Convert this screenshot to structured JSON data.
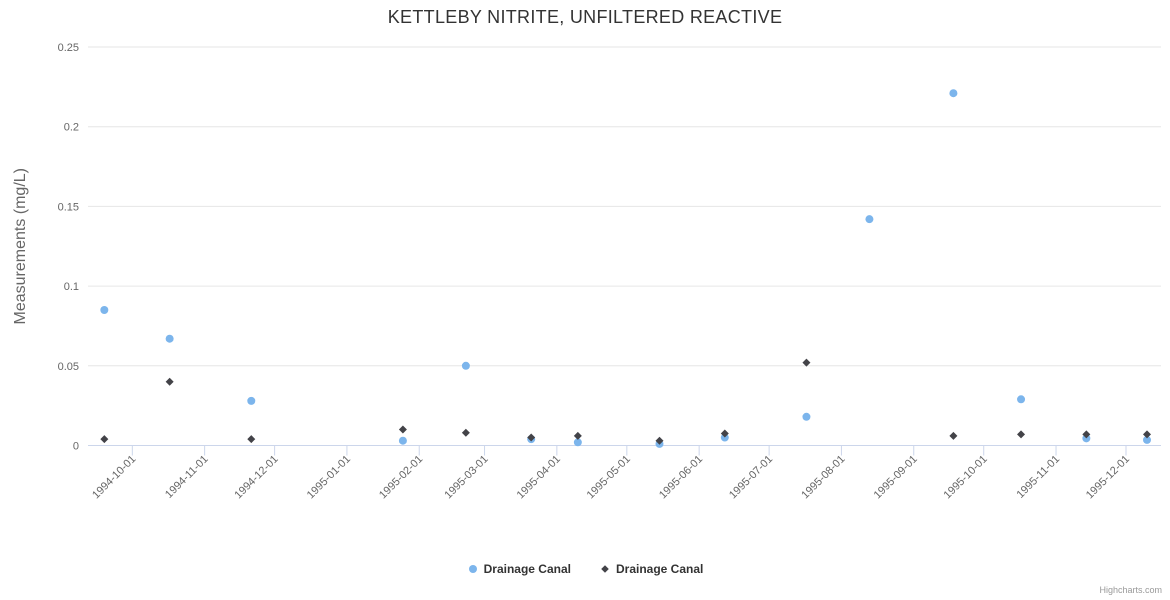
{
  "title": "KETTLEBY NITRITE, UNFILTERED REACTIVE",
  "credits": "Highcharts.com",
  "palette": {
    "series_blue": "#7cb5ec",
    "series_dark": "#434348",
    "gridline": "#e6e6e6",
    "axis_line": "#ccd6eb",
    "tick_label": "#666666",
    "axis_title": "#666666",
    "chart_title": "#333333",
    "legend_text": "#333333",
    "credits_text": "#999999"
  },
  "chart_data": {
    "type": "scatter",
    "title": "KETTLEBY NITRITE, UNFILTERED REACTIVE",
    "xlabel": "",
    "ylabel": "Measurements (mg/L)",
    "ylim": [
      0,
      0.25
    ],
    "y_ticks": [
      0,
      0.05,
      0.1,
      0.15,
      0.2,
      0.25
    ],
    "x_ticks": [
      "1994-10-01",
      "1994-11-01",
      "1994-12-01",
      "1995-01-01",
      "1995-02-01",
      "1995-03-01",
      "1995-04-01",
      "1995-05-01",
      "1995-06-01",
      "1995-07-01",
      "1995-08-01",
      "1995-09-01",
      "1995-10-01",
      "1995-11-01",
      "1995-12-01"
    ],
    "x_range": [
      "1994-09-12",
      "1995-12-16"
    ],
    "x_label_rotation": -45,
    "grid": "horizontal",
    "legend_position": "bottom-center",
    "series": [
      {
        "name": "Drainage Canal",
        "marker": "circle",
        "color": "#7cb5ec",
        "points": [
          [
            "1994-09-19",
            0.085
          ],
          [
            "1994-10-17",
            0.067
          ],
          [
            "1994-11-21",
            0.028
          ],
          [
            "1995-01-25",
            0.003
          ],
          [
            "1995-02-21",
            0.05
          ],
          [
            "1995-03-21",
            0.004
          ],
          [
            "1995-04-10",
            0.002
          ],
          [
            "1995-05-15",
            0.001
          ],
          [
            "1995-06-12",
            0.005
          ],
          [
            "1995-07-17",
            0.018
          ],
          [
            "1995-08-13",
            0.142
          ],
          [
            "1995-09-18",
            0.221
          ],
          [
            "1995-10-17",
            0.029
          ],
          [
            "1995-11-14",
            0.0045
          ],
          [
            "1995-12-10",
            0.0035
          ]
        ]
      },
      {
        "name": "Drainage Canal",
        "marker": "diamond",
        "color": "#434348",
        "points": [
          [
            "1994-09-19",
            0.004
          ],
          [
            "1994-10-17",
            0.04
          ],
          [
            "1994-11-21",
            0.004
          ],
          [
            "1995-01-25",
            0.01
          ],
          [
            "1995-02-21",
            0.008
          ],
          [
            "1995-03-21",
            0.005
          ],
          [
            "1995-04-10",
            0.006
          ],
          [
            "1995-05-15",
            0.003
          ],
          [
            "1995-06-12",
            0.0075
          ],
          [
            "1995-07-17",
            0.052
          ],
          [
            "1995-09-18",
            0.006
          ],
          [
            "1995-10-17",
            0.007
          ],
          [
            "1995-11-14",
            0.007
          ],
          [
            "1995-12-10",
            0.007
          ]
        ]
      }
    ]
  }
}
